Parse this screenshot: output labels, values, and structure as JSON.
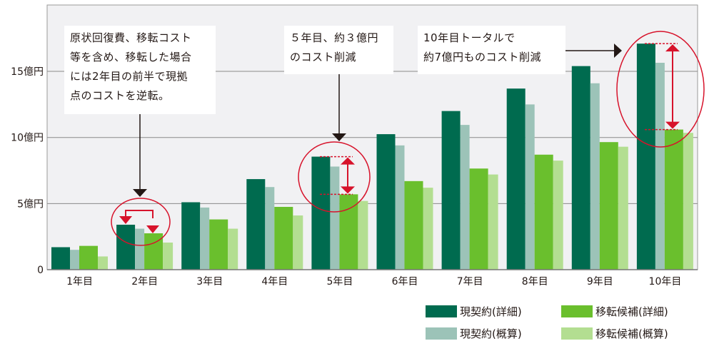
{
  "chart_data": {
    "type": "bar",
    "categories": [
      "1年目",
      "2年目",
      "3年目",
      "4年目",
      "5年目",
      "6年目",
      "7年目",
      "8年目",
      "9年目",
      "10年目"
    ],
    "y_ticks": [
      {
        "value": 0,
        "label": "0"
      },
      {
        "value": 5,
        "label": "5億円"
      },
      {
        "value": 10,
        "label": "10億円"
      },
      {
        "value": 15,
        "label": "15億円"
      }
    ],
    "ylim": [
      0,
      20
    ],
    "unit": "億円",
    "grid": true,
    "legend_placement": "bottom-right",
    "series": [
      {
        "name": "現契約(詳細)",
        "color": "#006b4f",
        "values": [
          1.7,
          3.4,
          5.1,
          6.85,
          8.55,
          10.25,
          12.0,
          13.7,
          15.4,
          17.1
        ]
      },
      {
        "name": "現契約(概算)",
        "color": "#9cc3b8",
        "values": [
          1.5,
          3.1,
          4.7,
          6.25,
          7.8,
          9.4,
          10.95,
          12.5,
          14.1,
          15.65
        ]
      },
      {
        "name": "移転候補(詳細)",
        "color": "#6abf2d",
        "values": [
          1.8,
          2.75,
          3.8,
          4.75,
          5.7,
          6.7,
          7.65,
          8.7,
          9.65,
          10.6
        ]
      },
      {
        "name": "移転候補(概算)",
        "color": "#b3de91",
        "values": [
          1.0,
          2.05,
          3.1,
          4.1,
          5.2,
          6.2,
          7.2,
          8.25,
          9.3,
          10.35
        ]
      }
    ],
    "annotations": [
      {
        "lines": [
          "原状回復費、移転コスト",
          "等を含め、移転した場合",
          "には2年目の前半で現拠",
          "点のコストを逆転。"
        ]
      },
      {
        "lines": [
          "５年目、約３億円",
          "のコスト削減"
        ]
      },
      {
        "lines": [
          "10年目トータルで",
          "約7億円ものコスト削減"
        ]
      }
    ],
    "highlight_color": "#d7132b",
    "plot_background": "#f1f1f3"
  }
}
